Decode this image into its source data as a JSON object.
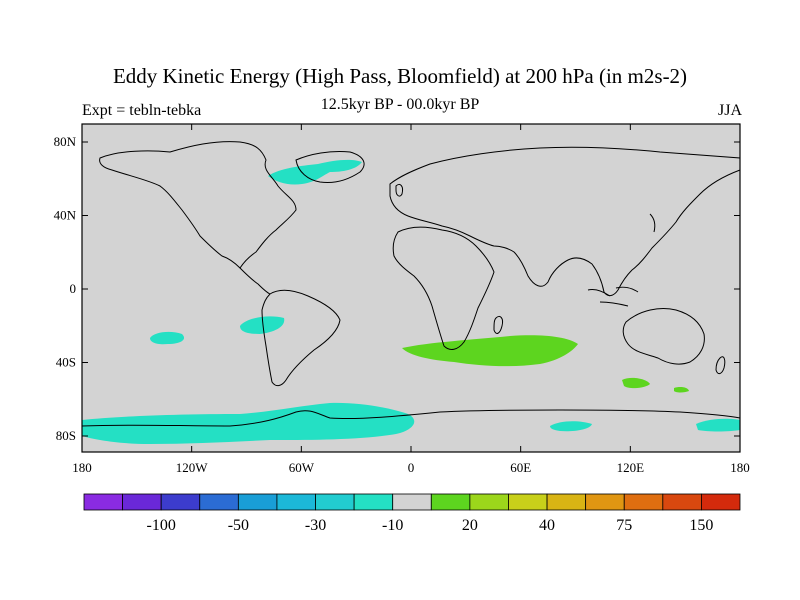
{
  "title": "Eddy Kinetic Energy (High Pass, Bloomfield) at 200 hPa (in m2s-2)",
  "subtitle_left": "Expt = tebln-tebka",
  "subtitle_center": "12.5kyr BP - 00.0kyr BP",
  "subtitle_right": "JJA",
  "colors": {
    "land_ocean_background": "#d3d3d3",
    "negative_shade": "#24e0c4",
    "positive_shade": "#5dd51f",
    "coastline": "#000000"
  },
  "axes": {
    "x_ticks": [
      "180",
      "120W",
      "60W",
      "0",
      "60E",
      "120E",
      "180"
    ],
    "y_ticks": [
      "80N",
      "40N",
      "0",
      "40S",
      "80S"
    ]
  },
  "colorbar": {
    "colors": [
      "#8a2be2",
      "#6a28d8",
      "#3c3ccd",
      "#2b6cd4",
      "#199ed6",
      "#1cb8d8",
      "#22ccd0",
      "#24e0c4",
      "#d3d3d3",
      "#5dd51f",
      "#9cd61b",
      "#c8d01a",
      "#d9b414",
      "#e09612",
      "#df6e10",
      "#d9480f",
      "#d42a0c"
    ],
    "labels": [
      "-100",
      "-50",
      "-30",
      "-10",
      "20",
      "40",
      "75",
      "150"
    ]
  },
  "map_features": [
    {
      "name": "north-atlantic-hudson",
      "sign": "negative"
    },
    {
      "name": "south-pacific-west",
      "sign": "negative"
    },
    {
      "name": "south-pacific-east",
      "sign": "negative"
    },
    {
      "name": "southern-ocean-pacific-atlantic",
      "sign": "negative"
    },
    {
      "name": "southern-ocean-east",
      "sign": "negative"
    },
    {
      "name": "south-indian-ocean",
      "sign": "positive"
    },
    {
      "name": "south-indian-east",
      "sign": "positive"
    },
    {
      "name": "tasman-small",
      "sign": "positive"
    }
  ]
}
